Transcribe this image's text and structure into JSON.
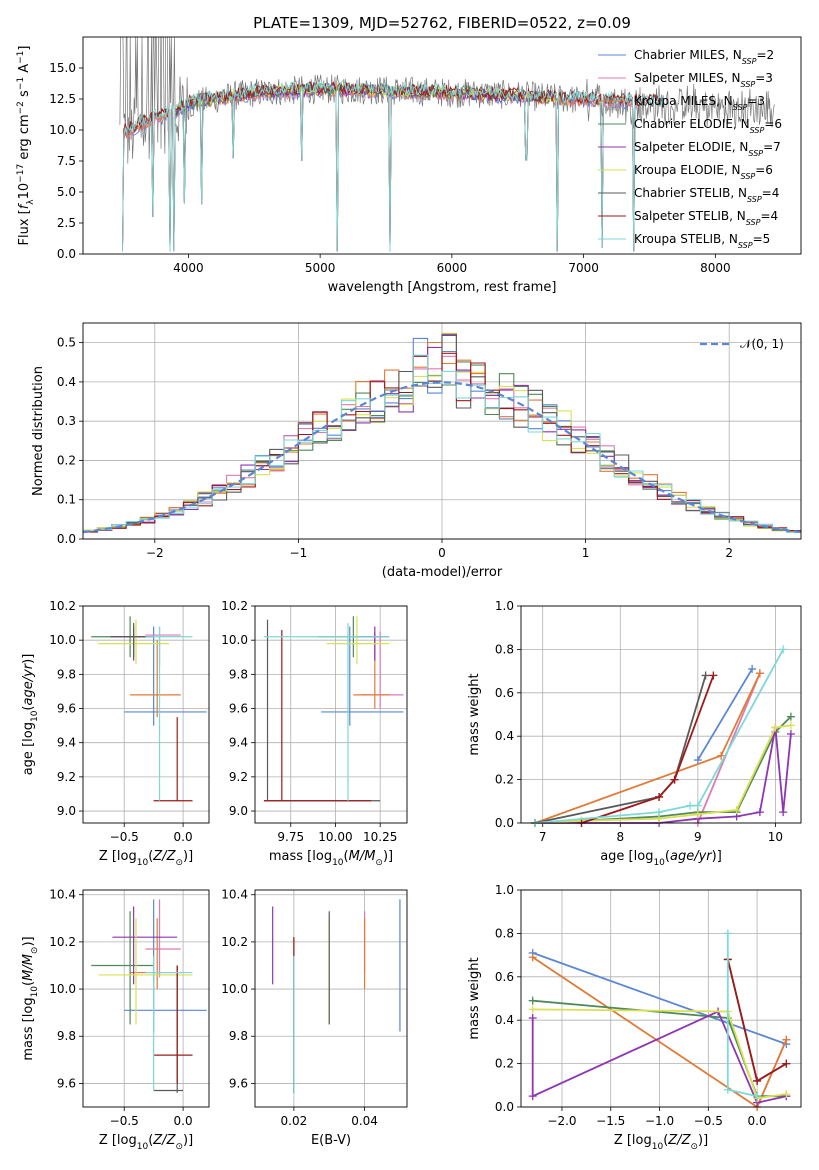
{
  "title": "PLATE=1309, MJD=52762, FIBERID=0522, z=0.09",
  "colors": {
    "Chabrier MILES": "#5b86d6",
    "Salpeter MILES": "#e07ab4",
    "Kroupa MILES": "#e07a36",
    "Chabrier ELODIE": "#4f8a5a",
    "Salpeter ELODIE": "#8e35b3",
    "Kroupa ELODIE": "#d9e052",
    "Chabrier STELIB": "#5a5a5a",
    "Salpeter STELIB": "#9e1a1a",
    "Kroupa STELIB": "#7dd8d8",
    "gauss": "#5b86d6"
  },
  "legend": [
    {
      "label": "Chabrier MILES, N",
      "sub": "SSP",
      "tail": "=2",
      "color": "Chabrier MILES"
    },
    {
      "label": "Salpeter MILES, N",
      "sub": "SSP",
      "tail": "=3",
      "color": "Salpeter MILES"
    },
    {
      "label": "Kroupa MILES, N",
      "sub": "SSP",
      "tail": "=3",
      "color": "Kroupa MILES"
    },
    {
      "label": "Chabrier ELODIE, N",
      "sub": "SSP",
      "tail": "=6",
      "color": "Chabrier ELODIE"
    },
    {
      "label": "Salpeter ELODIE, N",
      "sub": "SSP",
      "tail": "=7",
      "color": "Salpeter ELODIE"
    },
    {
      "label": "Kroupa ELODIE, N",
      "sub": "SSP",
      "tail": "=6",
      "color": "Kroupa ELODIE"
    },
    {
      "label": "Chabrier STELIB, N",
      "sub": "SSP",
      "tail": "=4",
      "color": "Chabrier STELIB"
    },
    {
      "label": "Salpeter STELIB, N",
      "sub": "SSP",
      "tail": "=4",
      "color": "Salpeter STELIB"
    },
    {
      "label": "Kroupa STELIB, N",
      "sub": "SSP",
      "tail": "=5",
      "color": "Kroupa STELIB"
    }
  ],
  "chart_data": [
    {
      "id": "spectrum",
      "type": "line",
      "xlabel": "wavelength [Angstrom, rest frame]",
      "ylabel": "Flux [fλ10⁻¹⁷ erg cm⁻² s⁻¹ A⁻¹]",
      "xlim": [
        3200,
        8650
      ],
      "ylim": [
        0,
        17.5
      ],
      "xticks": [
        4000,
        5000,
        6000,
        7000,
        8000
      ],
      "yticks": [
        0.0,
        2.5,
        5.0,
        7.5,
        10.0,
        12.5,
        15.0
      ],
      "grid": false,
      "legend_position": "top-right",
      "data_profile": [
        [
          3500,
          9.5
        ],
        [
          3600,
          9.8
        ],
        [
          3700,
          10.5
        ],
        [
          3800,
          11.0
        ],
        [
          3900,
          11.2
        ],
        [
          4000,
          12.0
        ],
        [
          4200,
          12.5
        ],
        [
          4500,
          13.0
        ],
        [
          5000,
          13.3
        ],
        [
          5500,
          13.2
        ],
        [
          6000,
          13.0
        ],
        [
          6500,
          12.8
        ],
        [
          7000,
          12.4
        ],
        [
          7500,
          12.0
        ],
        [
          8000,
          11.8
        ],
        [
          8450,
          11.5
        ]
      ],
      "model_profile": [
        [
          3500,
          9.8
        ],
        [
          3700,
          10.8
        ],
        [
          3900,
          11.5
        ],
        [
          4000,
          12.2
        ],
        [
          4500,
          13.0
        ],
        [
          5000,
          13.3
        ],
        [
          6000,
          13.0
        ],
        [
          7000,
          12.5
        ],
        [
          7600,
          12.2
        ]
      ],
      "dips": [
        [
          3500,
          0.2
        ],
        [
          3730,
          3.0
        ],
        [
          3860,
          0.2
        ],
        [
          3890,
          0.2
        ],
        [
          3970,
          4.1
        ],
        [
          4100,
          4.0
        ],
        [
          4340,
          7.7
        ],
        [
          4860,
          7.5
        ],
        [
          5130,
          0.2
        ],
        [
          5530,
          0.2
        ],
        [
          6565,
          7.6
        ],
        [
          6800,
          0.2
        ],
        [
          7140,
          0.5
        ],
        [
          7380,
          0.2
        ]
      ]
    },
    {
      "id": "residual-histogram",
      "type": "histogram",
      "xlabel": "(data-model)/error",
      "ylabel": "Normed distribution",
      "xlim": [
        -2.5,
        2.5
      ],
      "ylim": [
        0,
        0.55
      ],
      "xticks": [
        -2,
        -1,
        0,
        1,
        2
      ],
      "yticks": [
        0.0,
        0.1,
        0.2,
        0.3,
        0.4,
        0.5
      ],
      "grid": true,
      "legend": "𝒩(0, 1)",
      "legend_position": "top-right",
      "bin_width": 0.1
    },
    {
      "id": "age-vs-Z",
      "type": "errorbar",
      "xlabel": "Z [log10(Z/Z⊙)]",
      "ylabel": "age  [log10(age/yr)]",
      "xlim": [
        -0.85,
        0.22
      ],
      "ylim": [
        8.93,
        10.2
      ],
      "xticks": [
        -0.5,
        0.0
      ],
      "yticks": [
        9.0,
        9.2,
        9.4,
        9.6,
        9.8,
        10.0,
        10.2
      ],
      "grid": true,
      "points": [
        {
          "s": "Chabrier MILES",
          "x": -0.25,
          "y": 9.58,
          "xlo": -0.5,
          "xhi": 0.2,
          "ylo": 9.5,
          "yhi": 10.08
        },
        {
          "s": "Salpeter MILES",
          "x": -0.2,
          "y": 10.03,
          "xlo": -0.32,
          "xhi": -0.02,
          "ylo": 9.85,
          "yhi": 10.08
        },
        {
          "s": "Kroupa MILES",
          "x": -0.22,
          "y": 9.68,
          "xlo": -0.45,
          "xhi": -0.02,
          "ylo": 9.55,
          "yhi": 10.0
        },
        {
          "s": "Chabrier ELODIE",
          "x": -0.45,
          "y": 10.02,
          "xlo": -0.78,
          "xhi": -0.25,
          "ylo": 9.9,
          "yhi": 10.14
        },
        {
          "s": "Salpeter ELODIE",
          "x": -0.42,
          "y": 10.02,
          "xlo": -0.6,
          "xhi": -0.25,
          "ylo": 9.88,
          "yhi": 10.08
        },
        {
          "s": "Kroupa ELODIE",
          "x": -0.4,
          "y": 9.98,
          "xlo": -0.72,
          "xhi": -0.12,
          "ylo": 9.86,
          "yhi": 10.12
        },
        {
          "s": "Chabrier STELIB",
          "x": -0.42,
          "y": 10.02,
          "xlo": -0.62,
          "xhi": -0.3,
          "ylo": 9.9,
          "yhi": 10.1
        },
        {
          "s": "Salpeter STELIB",
          "x": -0.05,
          "y": 9.06,
          "xlo": -0.25,
          "xhi": 0.08,
          "ylo": 9.06,
          "yhi": 9.55
        },
        {
          "s": "Kroupa STELIB",
          "x": -0.2,
          "y": 10.02,
          "xlo": -0.32,
          "xhi": 0.08,
          "ylo": 9.06,
          "yhi": 10.08
        }
      ]
    },
    {
      "id": "age-vs-mass",
      "type": "errorbar",
      "xlabel": "mass [log10(M/M⊙)]",
      "ylabel": "",
      "xlim": [
        9.55,
        10.4
      ],
      "ylim": [
        8.93,
        10.2
      ],
      "xticks": [
        9.75,
        10.0,
        10.25
      ],
      "xticklabels": [
        "9.75",
        "10.00",
        "10.25"
      ],
      "yticks": [
        9.0,
        9.2,
        9.4,
        9.6,
        9.8,
        10.0,
        10.2
      ],
      "grid": true,
      "points": [
        {
          "s": "Chabrier MILES",
          "x": 10.08,
          "y": 9.58,
          "xlo": 9.92,
          "xhi": 10.38,
          "ylo": 9.5,
          "yhi": 10.08
        },
        {
          "s": "Salpeter MILES",
          "x": 10.25,
          "y": 9.68,
          "xlo": 10.15,
          "xhi": 10.38,
          "ylo": 9.6,
          "yhi": 10.05
        },
        {
          "s": "Kroupa MILES",
          "x": 10.22,
          "y": 9.68,
          "xlo": 10.1,
          "xhi": 10.3,
          "ylo": 9.6,
          "yhi": 10.05
        },
        {
          "s": "Chabrier ELODIE",
          "x": 10.1,
          "y": 10.02,
          "xlo": 9.9,
          "xhi": 10.25,
          "ylo": 9.9,
          "yhi": 10.14
        },
        {
          "s": "Salpeter ELODIE",
          "x": 10.22,
          "y": 10.02,
          "xlo": 10.12,
          "xhi": 10.3,
          "ylo": 9.88,
          "yhi": 10.08
        },
        {
          "s": "Kroupa ELODIE",
          "x": 10.12,
          "y": 9.98,
          "xlo": 9.95,
          "xhi": 10.3,
          "ylo": 9.86,
          "yhi": 10.14
        },
        {
          "s": "Chabrier STELIB",
          "x": 9.62,
          "y": 9.06,
          "xlo": 9.6,
          "xhi": 10.25,
          "ylo": 9.06,
          "yhi": 10.12
        },
        {
          "s": "Salpeter STELIB",
          "x": 9.7,
          "y": 9.06,
          "xlo": 9.6,
          "xhi": 10.2,
          "ylo": 9.06,
          "yhi": 10.06
        },
        {
          "s": "Kroupa STELIB",
          "x": 10.07,
          "y": 10.02,
          "xlo": 9.6,
          "xhi": 10.3,
          "ylo": 9.06,
          "yhi": 10.1
        }
      ]
    },
    {
      "id": "mass-weight-vs-age",
      "type": "line",
      "xlabel": "age  [log10(age/yr)]",
      "ylabel": "mass weight",
      "xlim": [
        6.72,
        10.33
      ],
      "ylim": [
        0,
        1.0
      ],
      "xticks": [
        7,
        8,
        9,
        10
      ],
      "yticks": [
        0.0,
        0.2,
        0.4,
        0.6,
        0.8,
        1.0
      ],
      "grid": true,
      "series": [
        {
          "s": "Chabrier MILES",
          "x": [
            9.0,
            9.7
          ],
          "y": [
            0.29,
            0.71
          ]
        },
        {
          "s": "Salpeter MILES",
          "x": [
            9.0,
            9.8
          ],
          "y": [
            0.0,
            0.69
          ]
        },
        {
          "s": "Kroupa MILES",
          "x": [
            6.9,
            9.3,
            9.8
          ],
          "y": [
            0.0,
            0.31,
            0.69
          ]
        },
        {
          "s": "Chabrier ELODIE",
          "x": [
            6.9,
            7.5,
            8.5,
            9.0,
            9.5,
            10.0,
            10.2
          ],
          "y": [
            0.0,
            0.01,
            0.03,
            0.05,
            0.05,
            0.42,
            0.49
          ]
        },
        {
          "s": "Salpeter ELODIE",
          "x": [
            6.9,
            7.5,
            8.5,
            9.0,
            9.5,
            9.8,
            10.0,
            10.1,
            10.2
          ],
          "y": [
            0.0,
            0.0,
            0.0,
            0.02,
            0.03,
            0.05,
            0.44,
            0.05,
            0.41
          ]
        },
        {
          "s": "Kroupa ELODIE",
          "x": [
            6.9,
            7.5,
            8.5,
            9.0,
            9.5,
            10.0,
            10.2
          ],
          "y": [
            0.0,
            0.01,
            0.02,
            0.04,
            0.06,
            0.44,
            0.45
          ]
        },
        {
          "s": "Chabrier STELIB",
          "x": [
            6.9,
            8.5,
            8.7,
            9.1
          ],
          "y": [
            0.0,
            0.12,
            0.2,
            0.68
          ]
        },
        {
          "s": "Salpeter STELIB",
          "x": [
            7.5,
            8.5,
            8.7,
            9.2
          ],
          "y": [
            0.0,
            0.12,
            0.2,
            0.68
          ]
        },
        {
          "s": "Kroupa STELIB",
          "x": [
            6.9,
            8.5,
            8.9,
            9.0,
            10.1
          ],
          "y": [
            0.0,
            0.05,
            0.08,
            0.08,
            0.8
          ]
        }
      ]
    },
    {
      "id": "mass-vs-Z",
      "type": "errorbar",
      "xlabel": "Z [log10(Z/Z⊙)]",
      "ylabel": "mass [log10(M/M⊙)]",
      "xlim": [
        -0.85,
        0.22
      ],
      "ylim": [
        9.5,
        10.42
      ],
      "xticks": [
        -0.5,
        0.0
      ],
      "yticks": [
        9.6,
        9.8,
        10.0,
        10.2,
        10.4
      ],
      "grid": true,
      "points": [
        {
          "s": "Chabrier MILES",
          "x": -0.25,
          "y": 9.91,
          "xlo": -0.5,
          "xhi": 0.2,
          "ylo": 9.82,
          "yhi": 10.38
        },
        {
          "s": "Salpeter MILES",
          "x": -0.2,
          "y": 10.17,
          "xlo": -0.32,
          "xhi": -0.02,
          "ylo": 10.05,
          "yhi": 10.38
        },
        {
          "s": "Kroupa MILES",
          "x": -0.22,
          "y": 10.07,
          "xlo": -0.45,
          "xhi": -0.02,
          "ylo": 10.0,
          "yhi": 10.3
        },
        {
          "s": "Chabrier ELODIE",
          "x": -0.45,
          "y": 10.1,
          "xlo": -0.78,
          "xhi": -0.25,
          "ylo": 9.85,
          "yhi": 10.33
        },
        {
          "s": "Salpeter ELODIE",
          "x": -0.42,
          "y": 10.22,
          "xlo": -0.6,
          "xhi": -0.05,
          "ylo": 10.02,
          "yhi": 10.35
        },
        {
          "s": "Kroupa ELODIE",
          "x": -0.4,
          "y": 10.06,
          "xlo": -0.72,
          "xhi": 0.08,
          "ylo": 9.85,
          "yhi": 10.3
        },
        {
          "s": "Chabrier STELIB",
          "x": -0.05,
          "y": 9.57,
          "xlo": -0.25,
          "xhi": 0.0,
          "ylo": 9.56,
          "yhi": 10.1
        },
        {
          "s": "Salpeter STELIB",
          "x": -0.05,
          "y": 9.72,
          "xlo": -0.25,
          "xhi": 0.08,
          "ylo": 9.6,
          "yhi": 10.1
        },
        {
          "s": "Kroupa STELIB",
          "x": -0.25,
          "y": 10.07,
          "xlo": -0.32,
          "xhi": 0.08,
          "ylo": 9.57,
          "yhi": 10.14
        }
      ]
    },
    {
      "id": "mass-vs-ebv",
      "type": "errorbar",
      "xlabel": "E(B-V)",
      "ylabel": "",
      "xlim": [
        0.009,
        0.052
      ],
      "ylim": [
        9.5,
        10.42
      ],
      "xticks": [
        0.02,
        0.04
      ],
      "xticklabels": [
        "0.02",
        "0.04"
      ],
      "yticks": [
        9.6,
        9.8,
        10.0,
        10.2,
        10.4
      ],
      "grid": true,
      "points": [
        {
          "s": "Chabrier MILES",
          "x": 0.05,
          "ylo": 9.82,
          "yhi": 10.38
        },
        {
          "s": "Salpeter MILES",
          "x": 0.04,
          "ylo": 10.07,
          "yhi": 10.33
        },
        {
          "s": "Kroupa MILES",
          "x": 0.04,
          "ylo": 10.0,
          "yhi": 10.3
        },
        {
          "s": "Chabrier ELODIE",
          "x": 0.02,
          "ylo": 9.56,
          "yhi": 10.22
        },
        {
          "s": "Salpeter ELODIE",
          "x": 0.014,
          "ylo": 10.02,
          "yhi": 10.35
        },
        {
          "s": "Kroupa ELODIE",
          "x": 0.03,
          "ylo": 9.85,
          "yhi": 10.3
        },
        {
          "s": "Chabrier STELIB",
          "x": 0.03,
          "ylo": 9.85,
          "yhi": 10.33
        },
        {
          "s": "Salpeter STELIB",
          "x": 0.02,
          "ylo": 9.56,
          "yhi": 10.22
        },
        {
          "s": "Kroupa STELIB",
          "x": 0.02,
          "ylo": 9.56,
          "yhi": 10.14
        }
      ]
    },
    {
      "id": "mass-weight-vs-Z",
      "type": "line",
      "xlabel": "Z [log10(Z/Z⊙)]",
      "ylabel": "mass weight",
      "xlim": [
        -2.42,
        0.45
      ],
      "ylim": [
        0,
        1.0
      ],
      "xticks": [
        -2.0,
        -1.5,
        -1.0,
        -0.5,
        0.0
      ],
      "xticklabels": [
        "−2.0",
        "−1.5",
        "−1.0",
        "−0.5",
        "0.0"
      ],
      "yticks": [
        0.0,
        0.2,
        0.4,
        0.6,
        0.8,
        1.0
      ],
      "grid": true,
      "series": [
        {
          "s": "Chabrier MILES",
          "x": [
            -2.3,
            0.3
          ],
          "y": [
            0.71,
            0.29
          ]
        },
        {
          "s": "Salpeter MILES",
          "x": [
            0.0,
            0.3
          ],
          "y": [
            0.0,
            0.31
          ]
        },
        {
          "s": "Kroupa MILES",
          "x": [
            -2.3,
            0.0,
            0.3
          ],
          "y": [
            0.69,
            0.0,
            0.31
          ]
        },
        {
          "s": "Chabrier ELODIE",
          "x": [
            -2.3,
            -0.3,
            0.0,
            0.3
          ],
          "y": [
            0.49,
            0.41,
            0.05,
            0.05
          ]
        },
        {
          "s": "Salpeter ELODIE",
          "x": [
            -2.3,
            -2.3,
            -0.4,
            0.0,
            0.3
          ],
          "y": [
            0.41,
            0.05,
            0.44,
            0.02,
            0.05
          ]
        },
        {
          "s": "Kroupa ELODIE",
          "x": [
            -2.3,
            -0.3,
            0.0,
            0.3
          ],
          "y": [
            0.45,
            0.44,
            0.04,
            0.06
          ]
        },
        {
          "s": "Chabrier STELIB",
          "x": [
            -0.3,
            0.0,
            0.3
          ],
          "y": [
            0.68,
            0.12,
            0.2
          ]
        },
        {
          "s": "Salpeter STELIB",
          "x": [
            -0.3,
            0.0,
            0.3
          ],
          "y": [
            0.68,
            0.12,
            0.2
          ]
        },
        {
          "s": "Kroupa STELIB",
          "x": [
            -0.3,
            -0.3,
            0.0
          ],
          "y": [
            0.8,
            0.08,
            0.05
          ]
        }
      ]
    }
  ]
}
